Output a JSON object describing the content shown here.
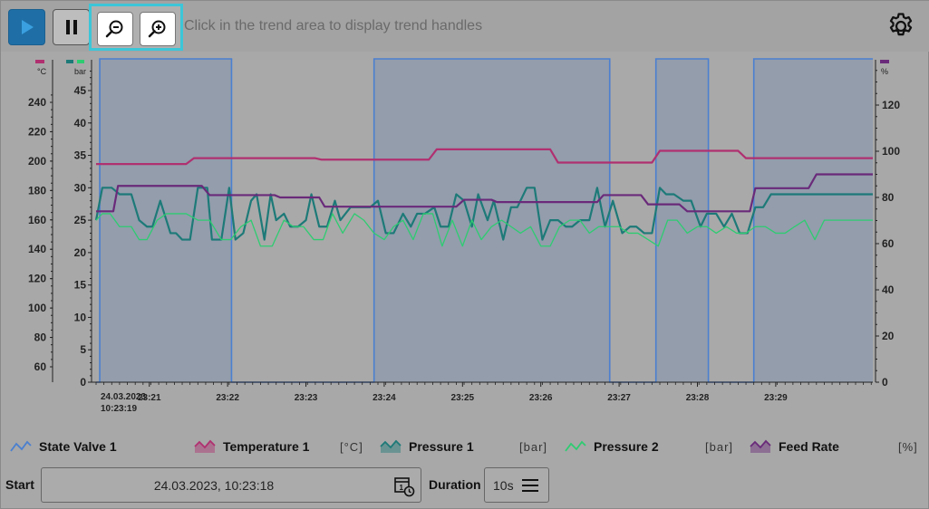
{
  "toolbar": {
    "hint": "Click in the trend area to display trend handles",
    "play_icon": "play-icon",
    "pause_icon": "pause-icon",
    "zoom_out_icon": "zoom-out-icon",
    "zoom_in_icon": "zoom-in-icon",
    "settings_icon": "gear-icon"
  },
  "axes": {
    "temp_unit": "°C",
    "pressure_unit": "bar",
    "percent_unit": "%",
    "temp_ticks": [
      "60",
      "80",
      "100",
      "120",
      "140",
      "160",
      "180",
      "200",
      "220",
      "240"
    ],
    "pressure_ticks": [
      "0",
      "5",
      "10",
      "15",
      "20",
      "25",
      "30",
      "35",
      "40",
      "45"
    ],
    "percent_ticks": [
      "0",
      "20",
      "40",
      "60",
      "80",
      "100",
      "120"
    ],
    "time_start_date": "24.03.2023",
    "time_start_time": "10:23:19",
    "time_ticks": [
      "23:21",
      "23:22",
      "23:23",
      "23:24",
      "23:25",
      "23:26",
      "23:27",
      "23:28",
      "23:29"
    ]
  },
  "legend": [
    {
      "name": "State Valve 1",
      "unit": "",
      "color": "#4a7fd0",
      "icon": "line-chart-icon"
    },
    {
      "name": "Temperature 1",
      "unit": "[°C]",
      "color": "#b03070",
      "icon": "area-chart-icon"
    },
    {
      "name": "Pressure 1",
      "unit": "[bar]",
      "color": "#1d7a78",
      "icon": "area-chart-icon"
    },
    {
      "name": "Pressure 2",
      "unit": "[bar]",
      "color": "#2ecc71",
      "icon": "line-chart-icon"
    },
    {
      "name": "Feed Rate",
      "unit": "[%]",
      "color": "#6a2a7a",
      "icon": "area-chart-icon"
    }
  ],
  "bottom": {
    "start_label": "Start",
    "start_value": "24.03.2023, 10:23:18",
    "duration_label": "Duration",
    "duration_value": "10s",
    "calendar_icon": "calendar-clock-icon",
    "menu_icon": "menu-icon"
  },
  "chart_data": {
    "type": "line",
    "x_range": [
      "23:20:19",
      "23:29:12"
    ],
    "series": [
      {
        "name": "State Valve 1",
        "color": "#4a7fd0",
        "axis": "percent",
        "steps": [
          [
            0,
            0
          ],
          [
            0.047,
            140
          ],
          [
            1.73,
            0
          ],
          [
            3.55,
            140
          ],
          [
            6.56,
            0
          ],
          [
            7.15,
            140
          ],
          [
            7.82,
            0
          ],
          [
            8.4,
            140
          ],
          [
            9.92,
            140
          ]
        ],
        "comment_unused": ""
      },
      {
        "name": "Temperature 1",
        "color": "#b03070",
        "axis": "temp",
        "x": [
          0,
          1.15,
          1.25,
          2.8,
          2.88,
          4.25,
          4.35,
          5.8,
          5.9,
          7.1,
          7.2,
          8.2,
          8.3,
          9.92
        ],
        "y": [
          198,
          198,
          202,
          202,
          201,
          201,
          208,
          208,
          199,
          199,
          207,
          207,
          202,
          202
        ]
      },
      {
        "name": "Pressure 1",
        "color": "#1d7a78",
        "axis": "pressure",
        "x": [
          0,
          0.08,
          0.2,
          0.3,
          0.45,
          0.55,
          0.65,
          0.72,
          0.82,
          0.95,
          1.02,
          1.1,
          1.2,
          1.3,
          1.42,
          1.48,
          1.6,
          1.7,
          1.78,
          1.88,
          1.98,
          2.05,
          2.15,
          2.23,
          2.3,
          2.4,
          2.48,
          2.58,
          2.68,
          2.75,
          2.85,
          2.95,
          3.05,
          3.12,
          3.25,
          3.38,
          3.5,
          3.6,
          3.7,
          3.8,
          3.92,
          4.02,
          4.1,
          4.2,
          4.32,
          4.4,
          4.5,
          4.6,
          4.7,
          4.8,
          4.88,
          5.0,
          5.08,
          5.2,
          5.3,
          5.38,
          5.5,
          5.6,
          5.7,
          5.8,
          5.9,
          6.0,
          6.08,
          6.18,
          6.3,
          6.4,
          6.5,
          6.6,
          6.72,
          6.82,
          6.9,
          7.0,
          7.1,
          7.2,
          7.28,
          7.38,
          7.5,
          7.6,
          7.72,
          7.8,
          7.92,
          8.02,
          8.12,
          8.22,
          8.32,
          8.42,
          8.52,
          8.62,
          8.72,
          8.82,
          8.92,
          9.02,
          9.15,
          9.3,
          9.5,
          9.7,
          9.92
        ],
        "y": [
          25,
          30,
          30,
          29,
          29,
          25,
          24,
          24,
          28,
          23,
          23,
          22,
          22,
          30,
          30,
          22,
          22,
          30,
          22,
          23,
          28,
          29,
          22,
          29,
          25,
          26,
          24,
          24,
          25,
          29,
          24,
          24,
          28,
          25,
          27,
          27,
          27,
          28,
          23,
          23,
          26,
          24,
          26,
          26,
          27,
          24,
          24,
          29,
          28,
          24,
          29,
          25,
          28,
          22,
          27,
          27,
          30,
          30,
          22,
          25,
          25,
          24,
          24,
          25,
          25,
          30,
          24,
          28,
          23,
          24,
          24,
          23,
          23,
          30,
          29,
          29,
          28,
          28,
          24,
          26,
          26,
          24,
          26,
          23,
          23,
          27,
          27,
          29,
          29,
          29,
          29,
          29,
          29,
          29,
          29,
          29,
          29
        ]
      },
      {
        "name": "Pressure 2",
        "color": "#2ecc71",
        "axis": "pressure",
        "x": [
          0,
          0.08,
          0.18,
          0.3,
          0.45,
          0.55,
          0.65,
          0.78,
          0.9,
          1.02,
          1.15,
          1.3,
          1.45,
          1.6,
          1.72,
          1.85,
          1.98,
          2.1,
          2.25,
          2.4,
          2.52,
          2.65,
          2.78,
          2.9,
          3.02,
          3.15,
          3.3,
          3.42,
          3.55,
          3.68,
          3.8,
          3.92,
          4.05,
          4.18,
          4.3,
          4.42,
          4.55,
          4.68,
          4.8,
          4.92,
          5.05,
          5.18,
          5.3,
          5.42,
          5.55,
          5.68,
          5.8,
          5.92,
          6.05,
          6.18,
          6.3,
          6.42,
          6.55,
          6.68,
          6.8,
          6.92,
          7.05,
          7.18,
          7.3,
          7.42,
          7.55,
          7.68,
          7.8,
          7.92,
          8.05,
          8.18,
          8.3,
          8.42,
          8.55,
          8.68,
          8.8,
          8.92,
          9.05,
          9.18,
          9.3,
          9.42,
          9.55,
          9.7,
          9.92
        ],
        "y": [
          25,
          26,
          26,
          24,
          24,
          22,
          22,
          25,
          26,
          26,
          26,
          25,
          25,
          22,
          22,
          24,
          25,
          21,
          21,
          25,
          24,
          24,
          22,
          22,
          26,
          23,
          26,
          25,
          23,
          22,
          24,
          25,
          22,
          26,
          26,
          21,
          25,
          21,
          25,
          22,
          24,
          25,
          24,
          23,
          24,
          21,
          21,
          24,
          25,
          25,
          23,
          24,
          24,
          24,
          23,
          23,
          22,
          21,
          25,
          25,
          23,
          24,
          24,
          23,
          24,
          23,
          23,
          24,
          24,
          23,
          23,
          24,
          25,
          22,
          25,
          25,
          25,
          25,
          25
        ]
      },
      {
        "name": "Feed Rate",
        "color": "#6a2a7a",
        "axis": "percent",
        "x": [
          0,
          0.22,
          0.28,
          1.35,
          1.45,
          2.28,
          2.35,
          2.85,
          2.92,
          4.6,
          4.7,
          5.05,
          5.12,
          6.4,
          6.48,
          6.96,
          7.05,
          7.45,
          7.55,
          8.35,
          8.42,
          9.1,
          9.2,
          9.92
        ],
        "y": [
          74,
          74,
          85,
          85,
          81,
          81,
          80,
          80,
          76,
          76,
          79,
          79,
          78,
          78,
          81,
          81,
          77,
          77,
          74,
          74,
          84,
          84,
          90,
          90
        ]
      }
    ]
  }
}
